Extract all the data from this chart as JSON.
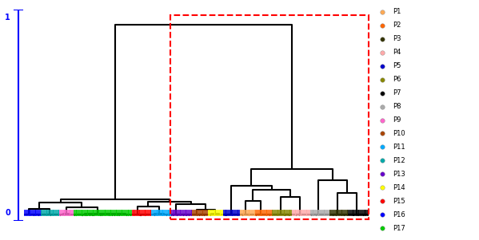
{
  "title": "",
  "n_leaves": 491,
  "n_populations": 17,
  "population_labels": [
    "P1",
    "P2",
    "P3",
    "P4",
    "P5",
    "P6",
    "P7",
    "P8",
    "P9",
    "P10",
    "P11",
    "P12",
    "P13",
    "P14",
    "P15",
    "P16",
    "P17"
  ],
  "population_colors": [
    "#FFAA55",
    "#FF6600",
    "#333300",
    "#FFAAAA",
    "#0000CC",
    "#888800",
    "#000000",
    "#AAAAAA",
    "#FF66CC",
    "#AA4400",
    "#00AAFF",
    "#00AAAA",
    "#6600CC",
    "#FFFF00",
    "#FF0000",
    "#0000FF",
    "#00CC00"
  ],
  "bg_color": "#FFFFFF",
  "figsize": [
    5.99,
    3.01
  ],
  "dpi": 100
}
